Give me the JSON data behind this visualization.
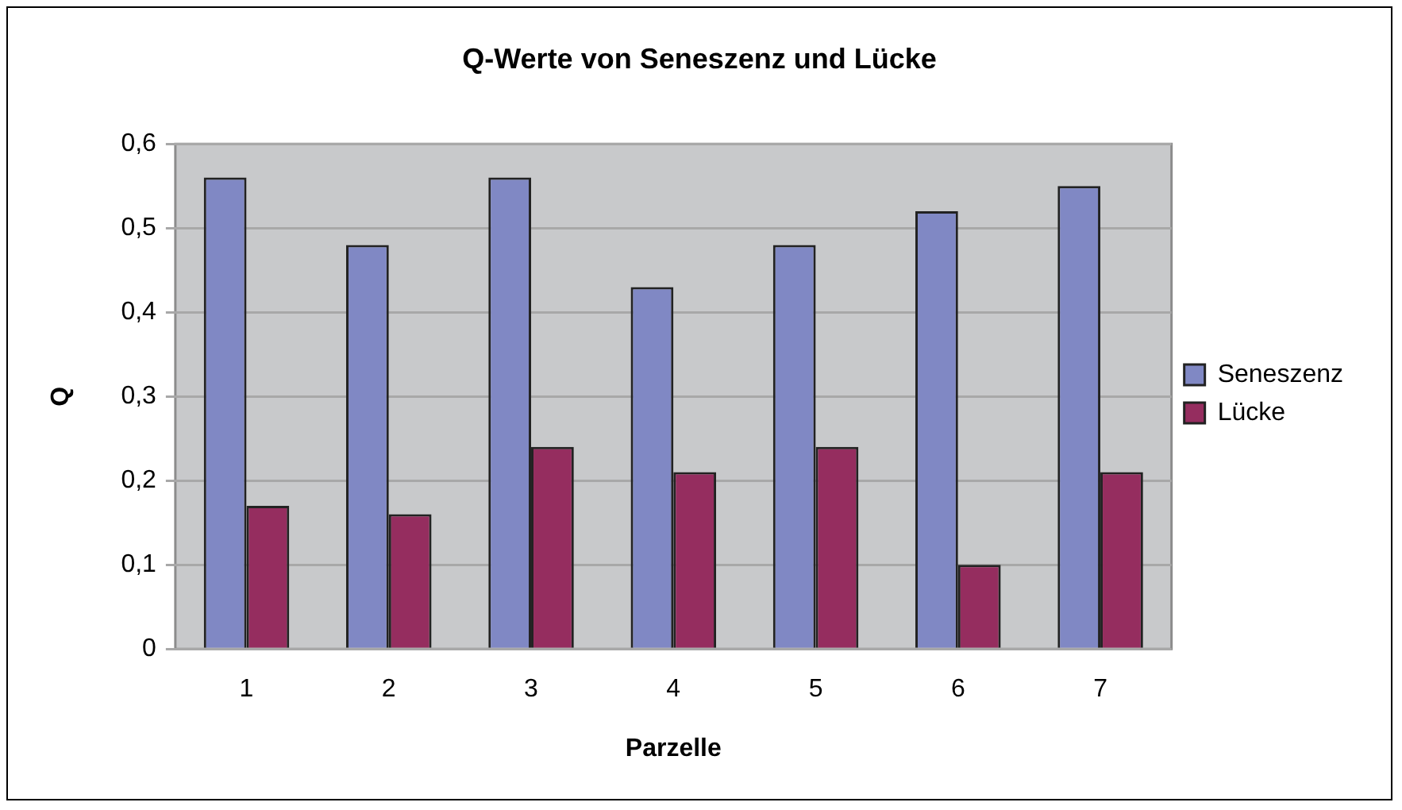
{
  "chart_data": {
    "type": "bar",
    "title": "Q-Werte von Seneszenz und Lücke",
    "xlabel": "Parzelle",
    "ylabel": "Q",
    "categories": [
      "1",
      "2",
      "3",
      "4",
      "5",
      "6",
      "7"
    ],
    "series": [
      {
        "name": "Seneszenz",
        "color": "#8088c4",
        "values": [
          0.56,
          0.48,
          0.56,
          0.43,
          0.48,
          0.52,
          0.55
        ]
      },
      {
        "name": "Lücke",
        "color": "#952d5f",
        "values": [
          0.17,
          0.16,
          0.24,
          0.21,
          0.24,
          0.1,
          0.21
        ]
      }
    ],
    "ylim": [
      0,
      0.6
    ],
    "yticks": [
      0,
      {
        "value": 0.1,
        "label": "0,1"
      },
      {
        "value": 0.2,
        "label": "0,2"
      },
      {
        "value": 0.3,
        "label": "0,3"
      },
      {
        "value": 0.4,
        "label": "0,4"
      },
      {
        "value": 0.5,
        "label": "0,5"
      },
      {
        "value": 0.6,
        "label": "0,6"
      }
    ],
    "grid": "y",
    "legend": "right"
  }
}
